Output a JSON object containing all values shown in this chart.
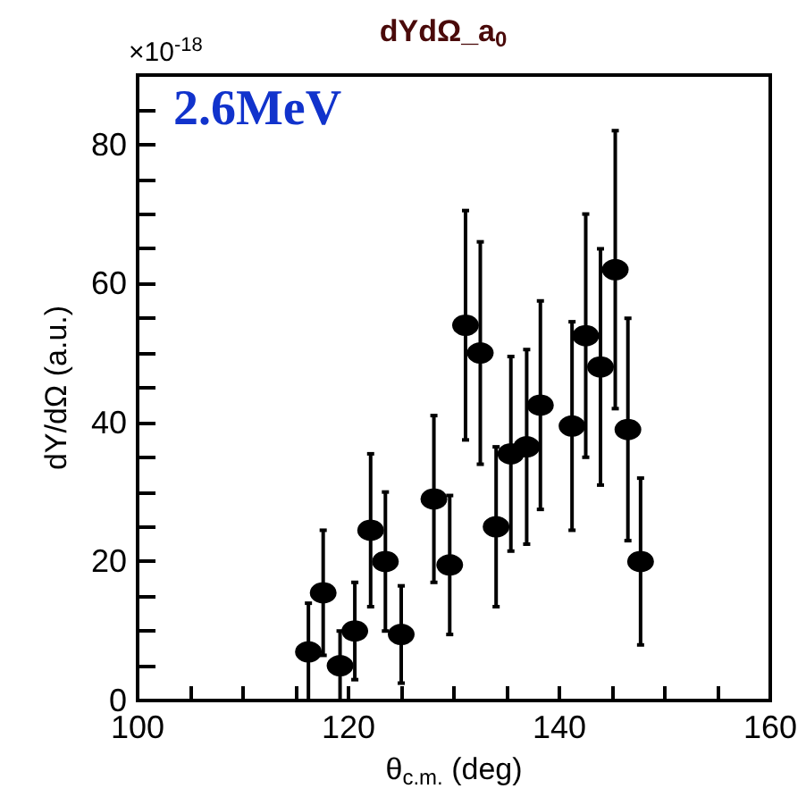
{
  "chart_data": {
    "type": "scatter",
    "title": "dYdΩ_a$_{0}$",
    "xlabel": "θ$_{c.m.}$ (deg)",
    "ylabel": "dY/dΩ (a.u.)",
    "annotations": [
      "2.6MeV",
      "×10$^{-18}$"
    ],
    "x": [
      116.2,
      117.6,
      119.2,
      120.6,
      122.1,
      123.5,
      125.0,
      128.1,
      129.6,
      131.1,
      132.5,
      134.0,
      135.4,
      136.9,
      138.2,
      141.2,
      142.5,
      143.9,
      145.3,
      146.5,
      147.7
    ],
    "series": [
      {
        "color": "#000000",
        "values": [
          7,
          15.5,
          5,
          10,
          24.5,
          20,
          9.5,
          29,
          19.5,
          54,
          50,
          25,
          35.5,
          36.5,
          42.5,
          39.5,
          52.5,
          48,
          62,
          39,
          20
        ],
        "errors": [
          7,
          9,
          5,
          7,
          11,
          10,
          7,
          12,
          10,
          16.5,
          16,
          11.5,
          14,
          14,
          15,
          15,
          17.5,
          17,
          20,
          16,
          12
        ]
      }
    ],
    "xlim": [
      100,
      160
    ],
    "xticks": [
      100,
      {
        "value": 105,
        "label": null
      },
      {
        "value": 110,
        "label": null
      },
      {
        "value": 115,
        "label": null
      },
      120,
      {
        "value": 125,
        "label": null
      },
      {
        "value": 130,
        "label": null
      },
      {
        "value": 135,
        "label": null
      },
      140,
      {
        "value": 145,
        "label": null
      },
      {
        "value": 150,
        "label": null
      },
      {
        "value": 155,
        "label": null
      },
      160
    ],
    "ylim": [
      0,
      90
    ],
    "yticks": [
      0,
      {
        "value": 5,
        "label": null
      },
      {
        "value": 10,
        "label": null
      },
      {
        "value": 15,
        "label": null
      },
      20,
      {
        "value": 25,
        "label": null
      },
      {
        "value": 30,
        "label": null
      },
      {
        "value": 35,
        "label": null
      },
      40,
      {
        "value": 45,
        "label": null
      },
      {
        "value": 50,
        "label": null
      },
      {
        "value": 55,
        "label": null
      },
      60,
      {
        "value": 65,
        "label": null
      },
      {
        "value": 70,
        "label": null
      },
      {
        "value": 75,
        "label": null
      },
      80,
      {
        "value": 85,
        "label": null
      }
    ],
    "grid": false,
    "legend": false,
    "marker": "circle"
  }
}
